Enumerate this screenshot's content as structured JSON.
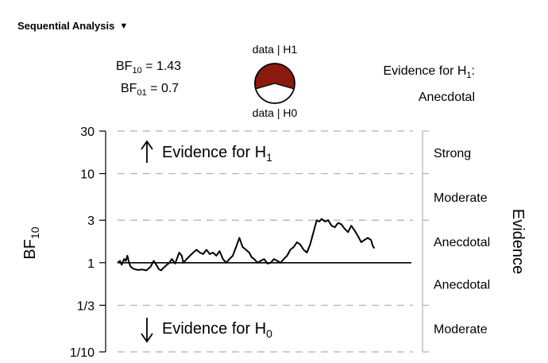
{
  "header": {
    "title": "Sequential Analysis",
    "toggle_icon": "triangle-down-icon"
  },
  "stats": {
    "bf10_label": "BF",
    "bf10_sub": "10",
    "bf10_value": " = 1.43",
    "bf01_label": "BF",
    "bf01_sub": "01",
    "bf01_value": " = 0.7",
    "evidence_line1": "Evidence for H",
    "evidence_line1_sub": "1",
    "evidence_line1_tail": ":",
    "evidence_line2": "Anecdotal"
  },
  "pie": {
    "top_label": "data | H1",
    "bottom_label": "data | H0",
    "p_h1": 0.589,
    "color_h1": "#8b1a0e",
    "color_h0": "#ffffff"
  },
  "chart_data": {
    "type": "line",
    "ylabel": "BF",
    "ylabel_sub": "10",
    "yscale": "log",
    "ylim": [
      0.1,
      30
    ],
    "yticks": [
      {
        "value": 30,
        "label": "30"
      },
      {
        "value": 10,
        "label": "10"
      },
      {
        "value": 3,
        "label": "3"
      },
      {
        "value": 1,
        "label": "1"
      },
      {
        "value": 0.3333,
        "label": "1/3"
      },
      {
        "value": 0.1,
        "label": "1/10"
      }
    ],
    "dashed_lines": [
      30,
      10,
      3,
      0.3333,
      0.1
    ],
    "reference_line": 1,
    "right_label": "Evidence",
    "evidence_categories": [
      "Strong",
      "Moderate",
      "Anecdotal",
      "Anecdotal",
      "Moderate"
    ],
    "annotation_h1": "Evidence for H",
    "annotation_h1_sub": "1",
    "annotation_h0": "Evidence for H",
    "annotation_h0_sub": "0",
    "arrow_up_icon": "arrow-up-icon",
    "arrow_down_icon": "arrow-down-icon",
    "line_color": "#000000",
    "grid_color": "#b0b0b0",
    "xlim": [
      0,
      330
    ],
    "series": [
      {
        "x": [
          0,
          3,
          5,
          8,
          10,
          12,
          14,
          16,
          20,
          25,
          30,
          35,
          40,
          44,
          48,
          50,
          53,
          56,
          60,
          63,
          66,
          70,
          75,
          78,
          80,
          84,
          88,
          92,
          96,
          100,
          104,
          108,
          112,
          116,
          120,
          124,
          128,
          132,
          136,
          140,
          144,
          148,
          152,
          156,
          160,
          163,
          166,
          170,
          174,
          178,
          182,
          186,
          190,
          194,
          198,
          202,
          206,
          210,
          214,
          218,
          222,
          226,
          230,
          234,
          238,
          242,
          245,
          248,
          252,
          256,
          260,
          264,
          268,
          272,
          276,
          280,
          284,
          288,
          292,
          296,
          300,
          304,
          308,
          310,
          312
        ],
        "y": [
          1.0,
          1.05,
          0.95,
          1.1,
          1.05,
          1.2,
          1.0,
          0.9,
          0.85,
          0.83,
          0.84,
          0.82,
          0.9,
          1.05,
          0.92,
          0.85,
          0.82,
          0.88,
          0.95,
          1.0,
          1.1,
          0.98,
          1.3,
          1.2,
          1.0,
          1.1,
          1.2,
          1.3,
          1.4,
          1.3,
          1.25,
          1.4,
          1.25,
          1.3,
          1.2,
          1.35,
          1.1,
          1.0,
          1.1,
          1.2,
          1.5,
          1.9,
          1.5,
          1.4,
          1.3,
          1.15,
          1.1,
          1.0,
          1.05,
          1.1,
          0.98,
          1.0,
          1.1,
          1.05,
          1.0,
          1.1,
          1.2,
          1.4,
          1.5,
          1.7,
          1.6,
          1.4,
          1.3,
          1.6,
          2.2,
          3.0,
          2.9,
          3.1,
          2.9,
          3.0,
          2.6,
          2.5,
          2.8,
          2.7,
          2.4,
          2.2,
          2.6,
          2.3,
          2.0,
          1.7,
          1.8,
          1.9,
          1.8,
          1.55,
          1.45
        ]
      }
    ]
  }
}
